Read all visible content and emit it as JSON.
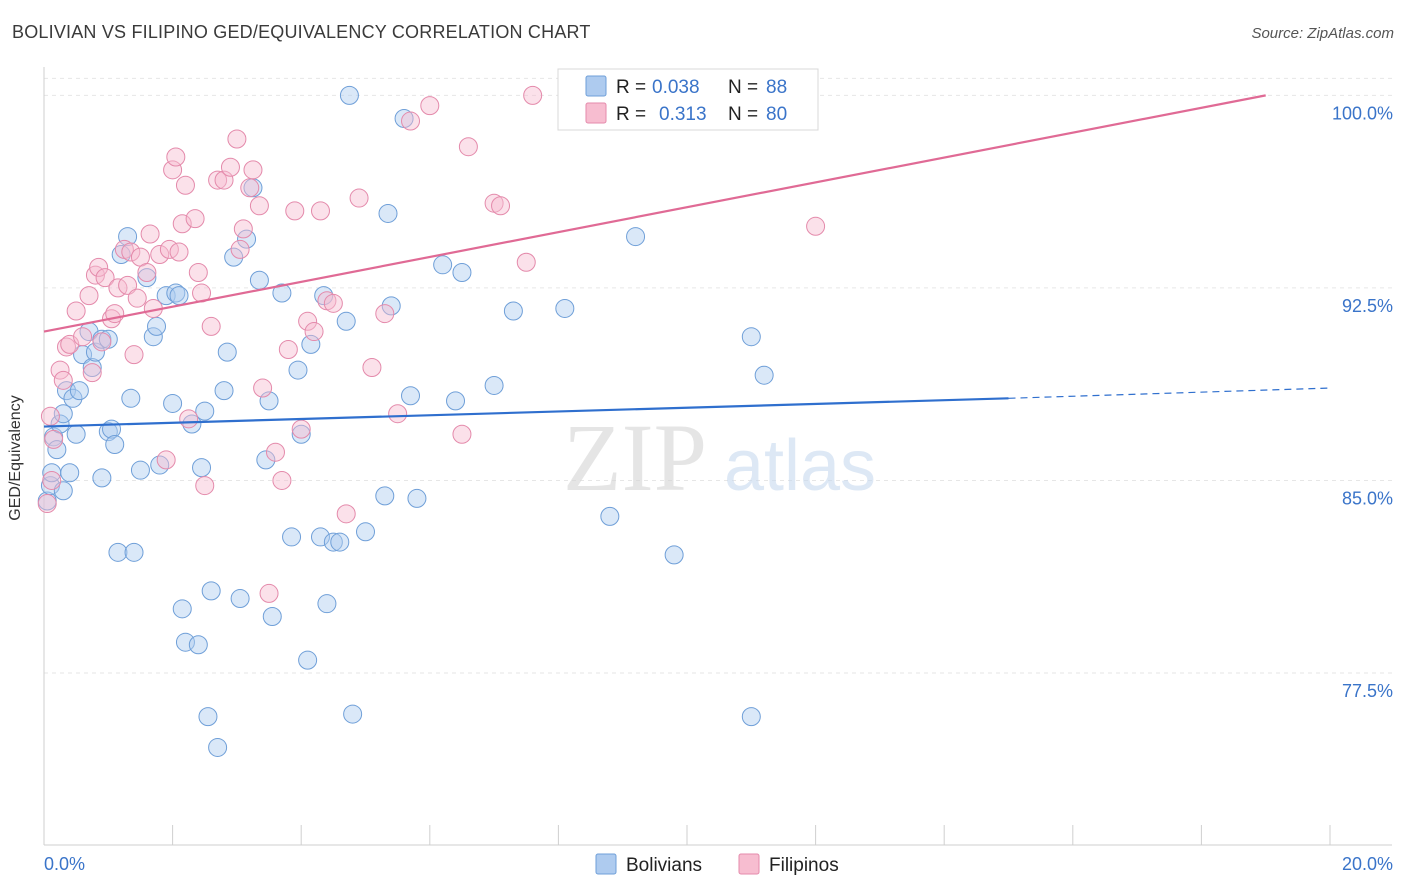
{
  "title": "BOLIVIAN VS FILIPINO GED/EQUIVALENCY CORRELATION CHART",
  "source": "Source: ZipAtlas.com",
  "watermark": {
    "zip": "ZIP",
    "atlas": "atlas"
  },
  "legend_top": [
    {
      "r_label": "R =",
      "r_value": "0.038",
      "n_label": "N =",
      "n_value": "88"
    },
    {
      "r_label": "R =",
      "r_value": "0.313",
      "n_label": "N =",
      "n_value": "80"
    }
  ],
  "colors": {
    "blue_fill": "#aecbef",
    "blue_stroke": "#6f9fd8",
    "blue_line": "#2f6fce",
    "pink_fill": "#f7bdd0",
    "pink_stroke": "#e48aab",
    "pink_line": "#e06a95",
    "tick_text": "#3a74c9",
    "grid": "#e6e6e6"
  },
  "chart_data": {
    "type": "scatter",
    "title": "BOLIVIAN VS FILIPINO GED/EQUIVALENCY CORRELATION CHART",
    "xlabel": "",
    "ylabel": "GED/Equivalency",
    "xlim": [
      0,
      20
    ],
    "ylim": [
      70.8,
      101.3
    ],
    "x_tick_labels": [
      "0.0%",
      "20.0%"
    ],
    "y_ticks": [
      77.5,
      85.0,
      92.5,
      100.0
    ],
    "y_tick_labels": [
      "77.5%",
      "85.0%",
      "92.5%",
      "100.0%"
    ],
    "grid": true,
    "legend_position": "bottom",
    "series": [
      {
        "name": "Bolivians",
        "color": "#aecbef",
        "r": 0.038,
        "n": 88,
        "trend": {
          "x": [
            0,
            15.0
          ],
          "y": [
            87.1,
            88.2
          ],
          "dashed_to": [
            20.0,
            88.6
          ]
        },
        "points": [
          [
            0.05,
            84.2
          ],
          [
            0.1,
            84.8
          ],
          [
            0.12,
            85.3
          ],
          [
            0.15,
            86.7
          ],
          [
            0.2,
            86.2
          ],
          [
            0.25,
            87.2
          ],
          [
            0.3,
            87.6
          ],
          [
            0.3,
            84.6
          ],
          [
            0.35,
            88.5
          ],
          [
            0.4,
            85.3
          ],
          [
            0.45,
            88.2
          ],
          [
            0.5,
            86.8
          ],
          [
            0.55,
            88.5
          ],
          [
            0.6,
            89.9
          ],
          [
            0.7,
            90.8
          ],
          [
            0.75,
            89.4
          ],
          [
            0.8,
            90.0
          ],
          [
            0.9,
            90.5
          ],
          [
            0.9,
            85.1
          ],
          [
            1.0,
            90.5
          ],
          [
            1.0,
            86.9
          ],
          [
            1.05,
            87.0
          ],
          [
            1.1,
            86.4
          ],
          [
            1.15,
            82.2
          ],
          [
            1.2,
            93.8
          ],
          [
            1.3,
            94.5
          ],
          [
            1.35,
            88.2
          ],
          [
            1.4,
            82.2
          ],
          [
            1.5,
            85.4
          ],
          [
            1.6,
            92.9
          ],
          [
            1.7,
            90.6
          ],
          [
            1.75,
            91.0
          ],
          [
            1.8,
            85.6
          ],
          [
            1.9,
            92.2
          ],
          [
            2.0,
            88.0
          ],
          [
            2.05,
            92.3
          ],
          [
            2.1,
            92.2
          ],
          [
            2.15,
            80.0
          ],
          [
            2.2,
            78.7
          ],
          [
            2.3,
            87.2
          ],
          [
            2.4,
            78.6
          ],
          [
            2.45,
            85.5
          ],
          [
            2.5,
            87.7
          ],
          [
            2.55,
            75.8
          ],
          [
            2.6,
            80.7
          ],
          [
            2.7,
            74.6
          ],
          [
            2.8,
            88.5
          ],
          [
            2.85,
            90.0
          ],
          [
            2.95,
            93.7
          ],
          [
            3.05,
            80.4
          ],
          [
            3.15,
            94.4
          ],
          [
            3.25,
            96.4
          ],
          [
            3.35,
            92.8
          ],
          [
            3.45,
            85.8
          ],
          [
            3.5,
            88.1
          ],
          [
            3.55,
            79.7
          ],
          [
            3.7,
            92.3
          ],
          [
            3.85,
            82.8
          ],
          [
            3.95,
            89.3
          ],
          [
            4.0,
            86.8
          ],
          [
            4.1,
            78.0
          ],
          [
            4.15,
            90.3
          ],
          [
            4.3,
            82.8
          ],
          [
            4.35,
            92.2
          ],
          [
            4.4,
            80.2
          ],
          [
            4.5,
            82.6
          ],
          [
            4.6,
            82.6
          ],
          [
            4.7,
            91.2
          ],
          [
            4.75,
            100.0
          ],
          [
            4.8,
            75.9
          ],
          [
            5.0,
            83.0
          ],
          [
            5.3,
            84.4
          ],
          [
            5.35,
            95.4
          ],
          [
            5.4,
            91.8
          ],
          [
            5.6,
            99.1
          ],
          [
            5.7,
            88.3
          ],
          [
            5.8,
            84.3
          ],
          [
            6.2,
            93.4
          ],
          [
            6.4,
            88.1
          ],
          [
            6.5,
            93.1
          ],
          [
            7.0,
            88.7
          ],
          [
            7.3,
            91.6
          ],
          [
            8.1,
            91.7
          ],
          [
            8.8,
            83.6
          ],
          [
            9.2,
            94.5
          ],
          [
            9.8,
            82.1
          ],
          [
            11.0,
            75.8
          ],
          [
            11.0,
            90.6
          ],
          [
            11.2,
            89.1
          ]
        ]
      },
      {
        "name": "Filipinos",
        "color": "#f7bdd0",
        "r": 0.313,
        "n": 80,
        "trend": {
          "x": [
            0,
            19.0
          ],
          "y": [
            90.8,
            100.0
          ]
        },
        "points": [
          [
            0.05,
            84.1
          ],
          [
            0.1,
            87.5
          ],
          [
            0.12,
            85.0
          ],
          [
            0.15,
            86.6
          ],
          [
            0.25,
            89.3
          ],
          [
            0.3,
            88.9
          ],
          [
            0.35,
            90.2
          ],
          [
            0.4,
            90.3
          ],
          [
            0.5,
            91.6
          ],
          [
            0.6,
            90.6
          ],
          [
            0.7,
            92.2
          ],
          [
            0.75,
            89.2
          ],
          [
            0.8,
            93.0
          ],
          [
            0.85,
            93.3
          ],
          [
            0.9,
            90.4
          ],
          [
            0.95,
            92.9
          ],
          [
            1.05,
            91.3
          ],
          [
            1.1,
            91.5
          ],
          [
            1.15,
            92.5
          ],
          [
            1.25,
            94.0
          ],
          [
            1.3,
            92.6
          ],
          [
            1.35,
            93.9
          ],
          [
            1.4,
            89.9
          ],
          [
            1.45,
            92.1
          ],
          [
            1.5,
            93.7
          ],
          [
            1.6,
            93.1
          ],
          [
            1.65,
            94.6
          ],
          [
            1.7,
            91.7
          ],
          [
            1.8,
            93.8
          ],
          [
            1.9,
            85.8
          ],
          [
            1.95,
            94.0
          ],
          [
            2.0,
            97.1
          ],
          [
            2.05,
            97.6
          ],
          [
            2.1,
            93.9
          ],
          [
            2.15,
            95.0
          ],
          [
            2.2,
            96.5
          ],
          [
            2.25,
            87.4
          ],
          [
            2.35,
            95.2
          ],
          [
            2.4,
            93.1
          ],
          [
            2.45,
            92.3
          ],
          [
            2.5,
            84.8
          ],
          [
            2.6,
            91.0
          ],
          [
            2.7,
            96.7
          ],
          [
            2.8,
            96.7
          ],
          [
            2.9,
            97.2
          ],
          [
            3.0,
            98.3
          ],
          [
            3.05,
            94.0
          ],
          [
            3.1,
            94.8
          ],
          [
            3.2,
            96.4
          ],
          [
            3.25,
            97.1
          ],
          [
            3.35,
            95.7
          ],
          [
            3.4,
            88.6
          ],
          [
            3.5,
            80.6
          ],
          [
            3.6,
            86.1
          ],
          [
            3.7,
            85.0
          ],
          [
            3.8,
            90.1
          ],
          [
            3.9,
            95.5
          ],
          [
            4.0,
            87.0
          ],
          [
            4.1,
            91.2
          ],
          [
            4.2,
            90.8
          ],
          [
            4.3,
            95.5
          ],
          [
            4.4,
            92.0
          ],
          [
            4.5,
            91.9
          ],
          [
            4.7,
            83.7
          ],
          [
            4.9,
            96.0
          ],
          [
            5.1,
            89.4
          ],
          [
            5.3,
            91.5
          ],
          [
            5.5,
            87.6
          ],
          [
            5.7,
            99.0
          ],
          [
            6.0,
            99.6
          ],
          [
            6.5,
            86.8
          ],
          [
            6.6,
            98.0
          ],
          [
            7.0,
            95.8
          ],
          [
            7.1,
            95.7
          ],
          [
            7.5,
            93.5
          ],
          [
            7.6,
            100.0
          ],
          [
            11.0,
            100.0
          ],
          [
            12.0,
            94.9
          ]
        ]
      }
    ]
  },
  "legend_bottom": [
    {
      "name": "Bolivians",
      "color": "#aecbef"
    },
    {
      "name": "Filipinos",
      "color": "#f7bdd0"
    }
  ]
}
